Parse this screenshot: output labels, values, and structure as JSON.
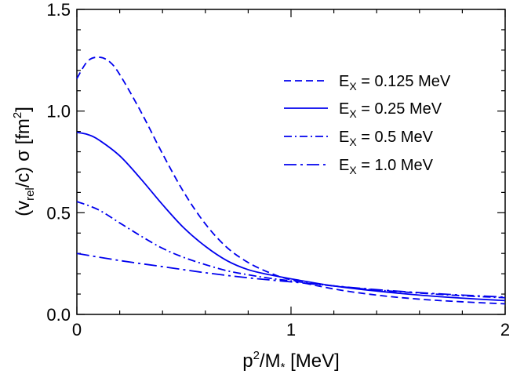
{
  "chart_data": {
    "type": "line",
    "title": "",
    "xlabel": {
      "base": "p",
      "sup": "2",
      "mid": "/M",
      "sub": "*",
      "tail": " [MeV]"
    },
    "ylabel": {
      "pre": "(v",
      "sub": "rel",
      "mid": "/c) σ [fm",
      "sup": "2",
      "post": "]"
    },
    "xlim": [
      0,
      2
    ],
    "ylim": [
      0,
      1.5
    ],
    "xticks": [
      "0",
      "1",
      "2"
    ],
    "yticks": [
      "0.0",
      "0.5",
      "1.0",
      "1.5"
    ],
    "grid": false,
    "legend_position": "top-right",
    "color": "#0000ee",
    "series": [
      {
        "name": "E_X = 0.125 MeV",
        "label_main": "E",
        "label_sub": "X",
        "label_rest": " = 0.125 MeV",
        "dash": "dashed",
        "x": [
          0,
          0.05,
          0.1,
          0.15,
          0.2,
          0.3,
          0.4,
          0.5,
          0.6,
          0.7,
          0.8,
          0.9,
          1.0,
          1.2,
          1.4,
          1.6,
          1.8,
          2.0
        ],
        "y": [
          1.16,
          1.245,
          1.265,
          1.245,
          1.18,
          0.995,
          0.79,
          0.6,
          0.445,
          0.33,
          0.255,
          0.205,
          0.17,
          0.125,
          0.095,
          0.075,
          0.062,
          0.052
        ]
      },
      {
        "name": "E_X = 0.25 MeV",
        "label_main": "E",
        "label_sub": "X",
        "label_rest": " = 0.25 MeV",
        "dash": "solid",
        "x": [
          0,
          0.05,
          0.1,
          0.2,
          0.3,
          0.4,
          0.5,
          0.6,
          0.7,
          0.8,
          0.9,
          1.0,
          1.2,
          1.4,
          1.6,
          1.8,
          2.0
        ],
        "y": [
          0.895,
          0.885,
          0.86,
          0.78,
          0.665,
          0.54,
          0.425,
          0.335,
          0.265,
          0.22,
          0.195,
          0.175,
          0.14,
          0.115,
          0.095,
          0.08,
          0.068
        ]
      },
      {
        "name": "E_X = 0.5 MeV",
        "label_main": "E",
        "label_sub": "X",
        "label_rest": " = 0.5 MeV",
        "dash": "dashdot",
        "x": [
          0,
          0.1,
          0.2,
          0.3,
          0.4,
          0.5,
          0.6,
          0.7,
          0.8,
          0.9,
          1.0,
          1.2,
          1.4,
          1.6,
          1.8,
          2.0
        ],
        "y": [
          0.555,
          0.515,
          0.45,
          0.385,
          0.325,
          0.28,
          0.245,
          0.215,
          0.195,
          0.178,
          0.165,
          0.14,
          0.12,
          0.105,
          0.092,
          0.082
        ]
      },
      {
        "name": "E_X = 1.0 MeV",
        "label_main": "E",
        "label_sub": "X",
        "label_rest": " = 1.0 MeV",
        "dash": "dashdotlong",
        "x": [
          0,
          0.2,
          0.4,
          0.6,
          0.8,
          1.0,
          1.2,
          1.4,
          1.6,
          1.8,
          2.0
        ],
        "y": [
          0.3,
          0.265,
          0.235,
          0.205,
          0.18,
          0.16,
          0.14,
          0.122,
          0.107,
          0.095,
          0.085
        ]
      }
    ]
  }
}
